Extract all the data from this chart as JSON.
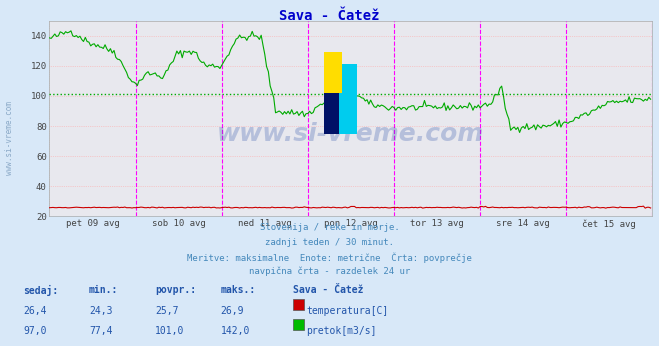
{
  "title": "Sava - Čatež",
  "title_color": "#0000cc",
  "bg_color": "#d8e8f8",
  "plot_bg_color": "#e8e8ee",
  "grid_color_h": "#ffaaaa",
  "grid_color_v": "#cccccc",
  "xlabels": [
    "pet 09 avg",
    "sob 10 avg",
    "ned 11 avg",
    "pon 12 avg",
    "tor 13 avg",
    "sre 14 avg",
    "čet 15 avg"
  ],
  "ylim": [
    20,
    150
  ],
  "yticks": [
    20,
    40,
    60,
    80,
    100,
    120,
    140
  ],
  "vline_color": "#ff00ff",
  "dotted_hline_value": 101.0,
  "dotted_hline_color": "#00aa00",
  "watermark_text": "www.si-vreme.com",
  "watermark_color": "#3355aa",
  "watermark_alpha": 0.28,
  "footer_lines": [
    "Slovenija / reke in morje.",
    "zadnji teden / 30 minut.",
    "Meritve: maksimalne  Enote: metrične  Črta: povprečje",
    "navpična črta - razdelek 24 ur"
  ],
  "footer_color": "#4488bb",
  "table_header": [
    "sedaj:",
    "min.:",
    "povpr.:",
    "maks.:",
    "Sava - Čatež"
  ],
  "table_data": [
    [
      "26,4",
      "24,3",
      "25,7",
      "26,9",
      "temperatura[C]",
      "#cc0000"
    ],
    [
      "97,0",
      "77,4",
      "101,0",
      "142,0",
      "pretok[m3/s]",
      "#00bb00"
    ]
  ],
  "table_color": "#2255aa",
  "n_points": 336,
  "red_line_color": "#cc0000",
  "green_line_color": "#00aa00",
  "sidebar_text": "www.si-vreme.com",
  "sidebar_color": "#7799bb",
  "icon_yellow": "#ffdd00",
  "icon_cyan": "#00ccee",
  "icon_dark": "#001166"
}
